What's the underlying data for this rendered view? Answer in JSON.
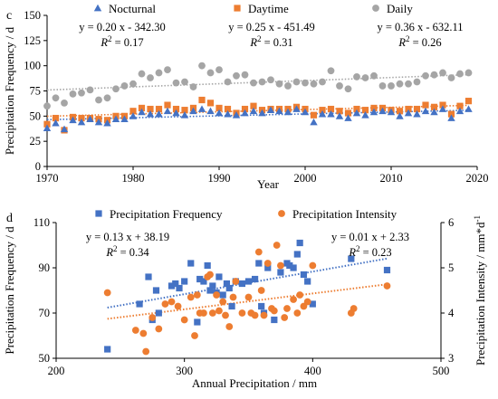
{
  "chart_data": [
    {
      "panel": "c",
      "type": "scatter",
      "xlabel": "Year",
      "ylabel": "Precipitation Frequency / d",
      "xlim": [
        1970,
        2020
      ],
      "ylim": [
        0,
        150
      ],
      "xticks": [
        1970,
        1980,
        1990,
        2000,
        2010,
        2020
      ],
      "yticks": [
        0,
        25,
        50,
        75,
        100,
        125,
        150
      ],
      "grid": false,
      "legend_position": "top",
      "trendlines": "dotted, per series",
      "series": [
        {
          "name": "Nocturnal",
          "marker": "triangle",
          "color": "#4472C4",
          "x": [
            1970,
            1971,
            1972,
            1973,
            1974,
            1975,
            1976,
            1977,
            1978,
            1979,
            1980,
            1981,
            1982,
            1983,
            1984,
            1985,
            1986,
            1987,
            1988,
            1989,
            1990,
            1991,
            1992,
            1993,
            1994,
            1995,
            1996,
            1997,
            1998,
            1999,
            2000,
            2001,
            2002,
            2003,
            2004,
            2005,
            2006,
            2007,
            2008,
            2009,
            2010,
            2011,
            2012,
            2013,
            2014,
            2015,
            2016,
            2017,
            2018,
            2019
          ],
          "y": [
            38,
            43,
            37,
            46,
            44,
            47,
            44,
            43,
            47,
            47,
            50,
            54,
            52,
            52,
            55,
            53,
            51,
            55,
            57,
            55,
            53,
            52,
            51,
            53,
            55,
            53,
            56,
            55,
            54,
            57,
            54,
            44,
            52,
            52,
            50,
            48,
            53,
            51,
            54,
            55,
            54,
            50,
            53,
            52,
            55,
            54,
            57,
            48,
            55,
            57
          ],
          "equation": "y = 0.20 x - 342.30",
          "r2_label": "R",
          "r2_value": "2 = 0.17"
        },
        {
          "name": "Daytime",
          "marker": "square",
          "color": "#ED7D31",
          "x": [
            1970,
            1971,
            1972,
            1973,
            1974,
            1975,
            1976,
            1977,
            1978,
            1979,
            1980,
            1981,
            1982,
            1983,
            1984,
            1985,
            1986,
            1987,
            1988,
            1989,
            1990,
            1991,
            1992,
            1993,
            1994,
            1995,
            1996,
            1997,
            1998,
            1999,
            2000,
            2001,
            2002,
            2003,
            2004,
            2005,
            2006,
            2007,
            2008,
            2009,
            2010,
            2011,
            2012,
            2013,
            2014,
            2015,
            2016,
            2017,
            2018,
            2019
          ],
          "y": [
            42,
            48,
            36,
            49,
            48,
            48,
            47,
            46,
            50,
            50,
            55,
            58,
            57,
            57,
            61,
            57,
            56,
            58,
            66,
            63,
            58,
            57,
            53,
            57,
            60,
            56,
            57,
            57,
            57,
            59,
            57,
            51,
            56,
            57,
            55,
            53,
            57,
            56,
            58,
            58,
            56,
            55,
            57,
            57,
            61,
            59,
            61,
            52,
            60,
            65
          ],
          "equation": "y = 0.25 x - 451.49",
          "r2_label": "R",
          "r2_value": "2 = 0.31"
        },
        {
          "name": "Daily",
          "marker": "circle",
          "color": "#A5A5A5",
          "x": [
            1970,
            1971,
            1972,
            1973,
            1974,
            1975,
            1976,
            1977,
            1978,
            1979,
            1980,
            1981,
            1982,
            1983,
            1984,
            1985,
            1986,
            1987,
            1988,
            1989,
            1990,
            1991,
            1992,
            1993,
            1994,
            1995,
            1996,
            1997,
            1998,
            1999,
            2000,
            2001,
            2002,
            2003,
            2004,
            2005,
            2006,
            2007,
            2008,
            2009,
            2010,
            2011,
            2012,
            2013,
            2014,
            2015,
            2016,
            2017,
            2018,
            2019
          ],
          "y": [
            60,
            68,
            63,
            72,
            73,
            76,
            66,
            68,
            77,
            80,
            82,
            92,
            88,
            93,
            96,
            83,
            84,
            79,
            100,
            93,
            96,
            84,
            90,
            91,
            83,
            84,
            86,
            82,
            80,
            84,
            83,
            82,
            84,
            95,
            80,
            77,
            89,
            88,
            90,
            80,
            80,
            82,
            82,
            84,
            90,
            91,
            93,
            88,
            92,
            93
          ],
          "equation": "y = 0.36 x - 632.11",
          "r2_label": "R",
          "r2_value": "2 = 0.26"
        }
      ]
    },
    {
      "panel": "d",
      "type": "scatter",
      "xlabel": "Annual Precipitation / mm",
      "ylabel": "Precipitation Frequency / d",
      "y2label": "Precipitation Intensity / mm*d",
      "y2label_sup": "-1",
      "xlim": [
        200,
        500
      ],
      "ylim": [
        50,
        110
      ],
      "y2lim": [
        3,
        6
      ],
      "xticks": [
        200,
        300,
        400,
        500
      ],
      "yticks": [
        50,
        70,
        90,
        110
      ],
      "y2ticks": [
        3,
        4,
        5,
        6
      ],
      "grid": false,
      "legend_position": "top",
      "series": [
        {
          "name": "Precipitation Frequency",
          "marker": "square",
          "color": "#4472C4",
          "axis": "left",
          "x": [
            240,
            265,
            272,
            275,
            278,
            280,
            290,
            293,
            296,
            300,
            305,
            310,
            312,
            315,
            318,
            320,
            322,
            325,
            327,
            330,
            333,
            335,
            337,
            340,
            345,
            350,
            355,
            358,
            360,
            362,
            365,
            370,
            375,
            380,
            382,
            385,
            388,
            390,
            393,
            396,
            400,
            430,
            458
          ],
          "y": [
            54,
            74,
            86,
            67,
            80,
            70,
            82,
            83,
            81,
            84,
            92,
            66,
            85,
            84,
            91,
            80,
            82,
            79,
            86,
            78,
            83,
            81,
            73,
            84,
            83,
            84,
            85,
            92,
            73,
            70,
            90,
            67,
            88,
            92,
            91,
            90,
            96,
            101,
            87,
            84,
            74,
            94,
            89
          ],
          "equation": "y = 0.13 x + 38.19",
          "r2_label": "R",
          "r2_value": "2 = 0.34"
        },
        {
          "name": "Precipitation Intensity",
          "marker": "circle",
          "color": "#ED7D31",
          "axis": "right",
          "x": [
            240,
            262,
            268,
            270,
            275,
            280,
            285,
            290,
            295,
            300,
            305,
            308,
            310,
            312,
            315,
            318,
            320,
            322,
            325,
            327,
            330,
            332,
            335,
            338,
            340,
            345,
            350,
            352,
            355,
            358,
            360,
            362,
            365,
            368,
            370,
            372,
            375,
            378,
            380,
            385,
            388,
            390,
            393,
            396,
            400,
            430,
            432,
            458
          ],
          "y": [
            4.45,
            3.62,
            3.55,
            3.15,
            3.9,
            3.65,
            4.2,
            4.25,
            4.15,
            3.85,
            4.35,
            3.5,
            4.4,
            4.0,
            4.0,
            4.8,
            4.85,
            4.0,
            4.4,
            4.05,
            4.25,
            3.95,
            3.7,
            4.35,
            4.7,
            4.0,
            4.35,
            4.0,
            3.95,
            5.35,
            4.5,
            3.95,
            5.1,
            4.1,
            4.05,
            5.5,
            5.05,
            3.9,
            4.1,
            4.3,
            4.0,
            4.4,
            4.15,
            4.25,
            5.05,
            4.0,
            4.1,
            4.6
          ],
          "equation": "y = 0.01 x + 2.33",
          "r2_label": "R",
          "r2_value": "2 = 0.23"
        }
      ]
    }
  ]
}
